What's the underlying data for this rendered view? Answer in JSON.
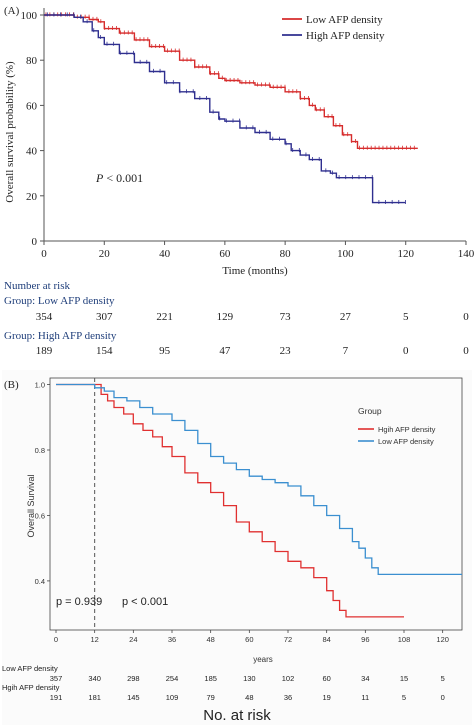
{
  "chart_data": [
    {
      "type": "line",
      "panel_label": "(A)",
      "xlabel": "Time (months)",
      "ylabel": "Overall survival probability (%)",
      "xlim": [
        0,
        140
      ],
      "ylim": [
        0,
        100
      ],
      "x_ticks": [
        0,
        20,
        40,
        60,
        80,
        100,
        120,
        140
      ],
      "y_ticks": [
        0,
        20,
        40,
        60,
        80,
        100
      ],
      "legend_position": "top-right",
      "annotation_prefix": "P",
      "annotation_suffix": " < 0.001",
      "series": [
        {
          "name": "Low AFP density",
          "color": "#d62c2c",
          "points": [
            [
              0,
              100
            ],
            [
              5,
              100
            ],
            [
              10,
              99
            ],
            [
              15,
              98
            ],
            [
              18,
              97
            ],
            [
              20,
              94
            ],
            [
              25,
              92
            ],
            [
              30,
              89
            ],
            [
              35,
              86
            ],
            [
              40,
              84
            ],
            [
              45,
              80
            ],
            [
              50,
              77
            ],
            [
              55,
              74
            ],
            [
              58,
              72
            ],
            [
              60,
              71
            ],
            [
              65,
              70
            ],
            [
              70,
              69
            ],
            [
              75,
              68
            ],
            [
              80,
              66
            ],
            [
              85,
              63
            ],
            [
              88,
              60
            ],
            [
              90,
              58
            ],
            [
              93,
              55
            ],
            [
              96,
              51
            ],
            [
              99,
              47
            ],
            [
              102,
              44
            ],
            [
              104,
              41
            ],
            [
              110,
              41
            ],
            [
              124,
              41
            ]
          ]
        },
        {
          "name": "High AFP density",
          "color": "#2f2f8f",
          "points": [
            [
              0,
              100
            ],
            [
              5,
              100
            ],
            [
              10,
              99
            ],
            [
              13,
              97
            ],
            [
              16,
              93
            ],
            [
              18,
              90
            ],
            [
              20,
              87
            ],
            [
              25,
              83
            ],
            [
              30,
              79
            ],
            [
              35,
              75
            ],
            [
              40,
              70
            ],
            [
              45,
              66
            ],
            [
              50,
              63
            ],
            [
              55,
              57
            ],
            [
              58,
              54
            ],
            [
              60,
              53
            ],
            [
              65,
              50
            ],
            [
              70,
              48
            ],
            [
              75,
              45
            ],
            [
              80,
              43
            ],
            [
              82,
              40
            ],
            [
              85,
              38
            ],
            [
              88,
              36
            ],
            [
              92,
              31
            ],
            [
              95,
              30
            ],
            [
              97,
              28
            ],
            [
              100,
              28
            ],
            [
              108,
              28
            ],
            [
              109,
              17
            ],
            [
              115,
              17
            ],
            [
              120,
              17
            ]
          ]
        }
      ],
      "risk_table": {
        "title": "Number at risk",
        "groups": [
          {
            "label": "Group: Low AFP density",
            "values": [
              "354",
              "307",
              "221",
              "129",
              "73",
              "27",
              "5",
              "0"
            ]
          },
          {
            "label": "Group: High AFP density",
            "values": [
              "189",
              "154",
              "95",
              "47",
              "23",
              "7",
              "0",
              "0"
            ]
          }
        ]
      }
    },
    {
      "type": "line",
      "panel_label": "(B)",
      "xlabel": "years",
      "ylabel": "Overall Survival",
      "xlim": [
        0,
        126
      ],
      "ylim": [
        0.25,
        1.02
      ],
      "x_ticks": [
        0,
        12,
        24,
        36,
        48,
        60,
        72,
        84,
        96,
        108,
        120
      ],
      "y_ticks": [
        0.4,
        0.6,
        0.8,
        1.0
      ],
      "y_tick_labels": [
        "0.4",
        "0.6",
        "0.8",
        "1.0"
      ],
      "legend_title": "Group",
      "legend_position": "top-right",
      "reference_line_x": 12,
      "annotation_left": "p = 0.939",
      "annotation_right": "p < 0.001",
      "series": [
        {
          "name": "Hgih AFP density",
          "color": "#e03030",
          "points": [
            [
              0,
              1.0
            ],
            [
              12,
              1.0
            ],
            [
              14,
              0.97
            ],
            [
              16,
              0.95
            ],
            [
              18,
              0.93
            ],
            [
              21,
              0.91
            ],
            [
              24,
              0.88
            ],
            [
              27,
              0.86
            ],
            [
              30,
              0.84
            ],
            [
              33,
              0.81
            ],
            [
              36,
              0.78
            ],
            [
              40,
              0.73
            ],
            [
              44,
              0.7
            ],
            [
              48,
              0.67
            ],
            [
              52,
              0.63
            ],
            [
              56,
              0.58
            ],
            [
              60,
              0.55
            ],
            [
              64,
              0.52
            ],
            [
              68,
              0.49
            ],
            [
              72,
              0.46
            ],
            [
              76,
              0.44
            ],
            [
              80,
              0.41
            ],
            [
              84,
              0.37
            ],
            [
              86,
              0.34
            ],
            [
              88,
              0.31
            ],
            [
              90,
              0.29
            ],
            [
              100,
              0.29
            ],
            [
              108,
              0.29
            ]
          ]
        },
        {
          "name": "Low AFP density",
          "color": "#3b8fd0",
          "points": [
            [
              0,
              1.0
            ],
            [
              10,
              1.0
            ],
            [
              12,
              0.99
            ],
            [
              15,
              0.98
            ],
            [
              18,
              0.96
            ],
            [
              22,
              0.95
            ],
            [
              26,
              0.93
            ],
            [
              30,
              0.91
            ],
            [
              36,
              0.89
            ],
            [
              40,
              0.86
            ],
            [
              44,
              0.82
            ],
            [
              48,
              0.78
            ],
            [
              52,
              0.76
            ],
            [
              56,
              0.74
            ],
            [
              60,
              0.72
            ],
            [
              64,
              0.71
            ],
            [
              68,
              0.7
            ],
            [
              72,
              0.69
            ],
            [
              76,
              0.66
            ],
            [
              80,
              0.63
            ],
            [
              84,
              0.6
            ],
            [
              88,
              0.56
            ],
            [
              92,
              0.52
            ],
            [
              94,
              0.5
            ],
            [
              96,
              0.47
            ],
            [
              98,
              0.44
            ],
            [
              100,
              0.42
            ],
            [
              110,
              0.42
            ],
            [
              126,
              0.42
            ]
          ]
        }
      ],
      "risk_table": {
        "title": "No. at risk",
        "groups": [
          {
            "label": "Low AFP density",
            "values": [
              "357",
              "340",
              "298",
              "254",
              "185",
              "130",
              "102",
              "60",
              "34",
              "15",
              "5"
            ]
          },
          {
            "label": "Hgih AFP density",
            "values": [
              "191",
              "181",
              "145",
              "109",
              "79",
              "48",
              "36",
              "19",
              "11",
              "5",
              "0"
            ]
          }
        ]
      }
    }
  ]
}
